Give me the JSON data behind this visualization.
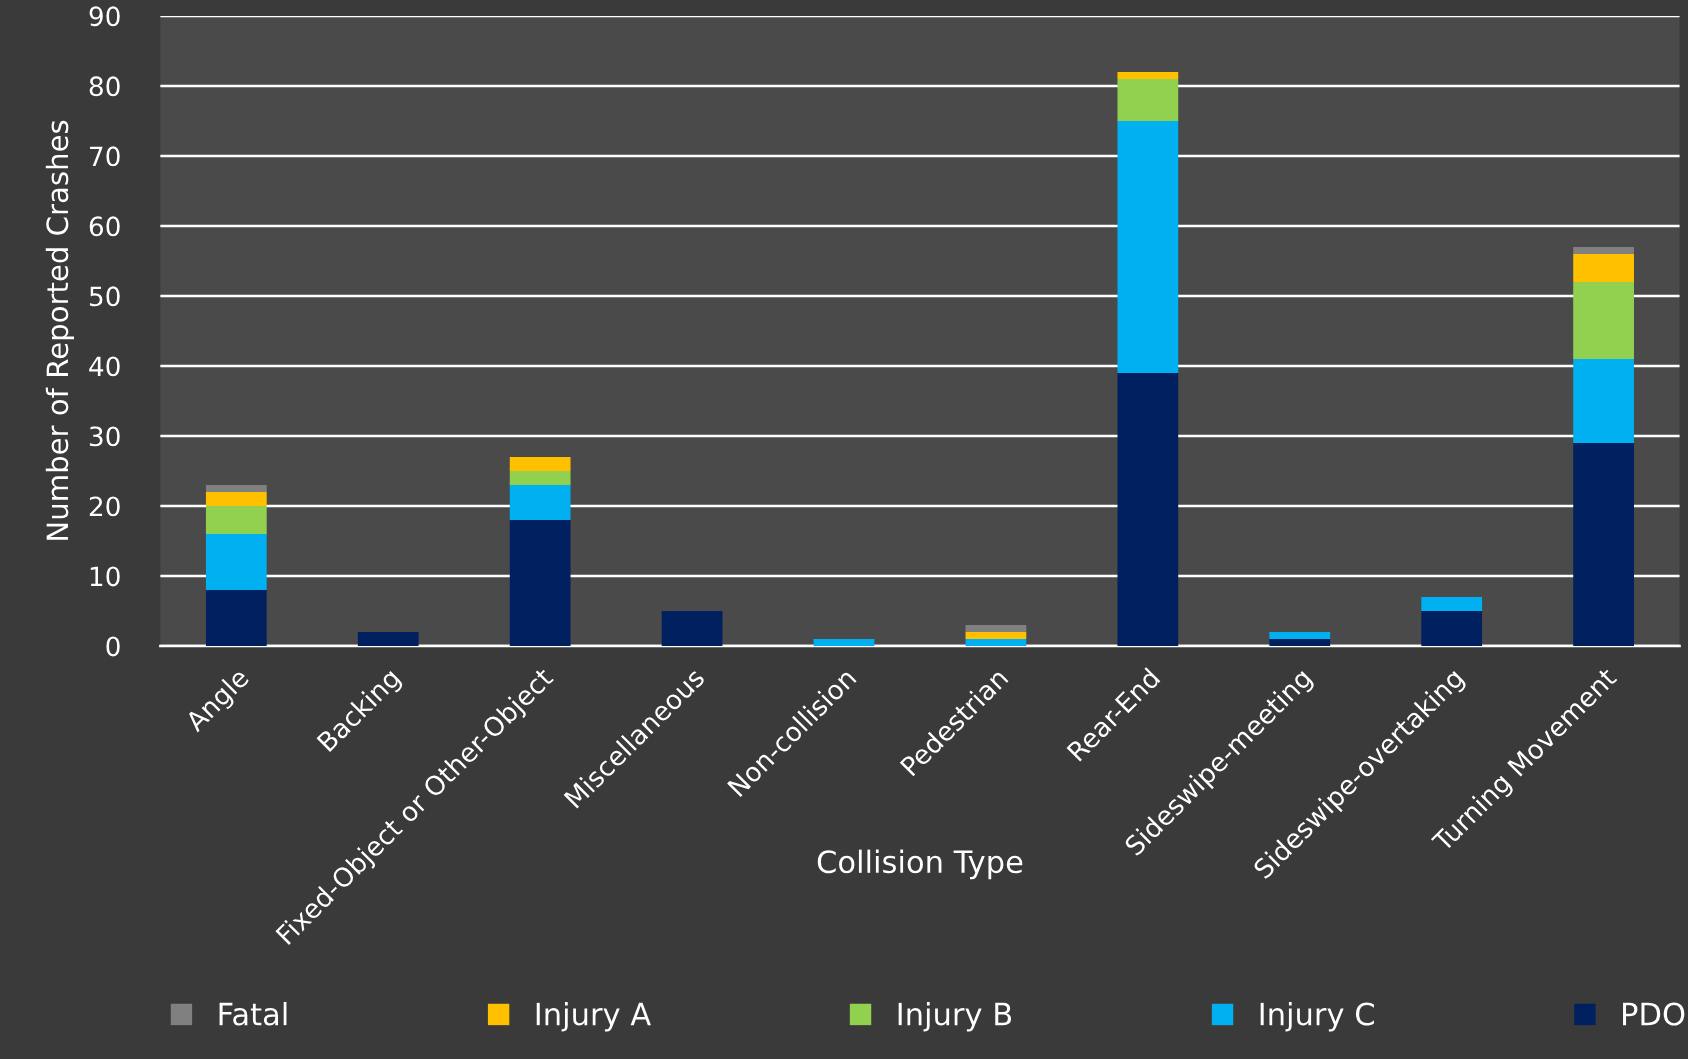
{
  "chart_data": {
    "type": "bar",
    "stacked": true,
    "xlabel": "Collision Type",
    "ylabel": "Number of Reported Crashes",
    "categories": [
      "Angle",
      "Backing",
      "Fixed-Object or Other-Object",
      "Miscellaneous",
      "Non-collision",
      "Pedestrian",
      "Rear-End",
      "Sideswipe-meeting",
      "Sideswipe-overtaking",
      "Turning Movement"
    ],
    "series": [
      {
        "name": "PDO",
        "color": "#002060",
        "values": [
          8,
          2,
          18,
          5,
          0,
          0,
          39,
          1,
          5,
          29
        ]
      },
      {
        "name": "Injury C",
        "color": "#00b0f0",
        "values": [
          8,
          0,
          5,
          0,
          1,
          1,
          36,
          1,
          2,
          12
        ]
      },
      {
        "name": "Injury B",
        "color": "#92d050",
        "values": [
          4,
          0,
          2,
          0,
          0,
          0,
          6,
          0,
          0,
          11
        ]
      },
      {
        "name": "Injury A",
        "color": "#ffc000",
        "values": [
          2,
          0,
          2,
          0,
          0,
          1,
          1,
          0,
          0,
          4
        ]
      },
      {
        "name": "Fatal",
        "color": "#808080",
        "values": [
          1,
          0,
          0,
          0,
          0,
          1,
          0,
          0,
          0,
          1
        ]
      }
    ],
    "ylim": [
      0,
      90
    ],
    "yticks": [
      0,
      10,
      20,
      30,
      40,
      50,
      60,
      70,
      80,
      90
    ],
    "grid": "y",
    "legend": "bottom"
  }
}
